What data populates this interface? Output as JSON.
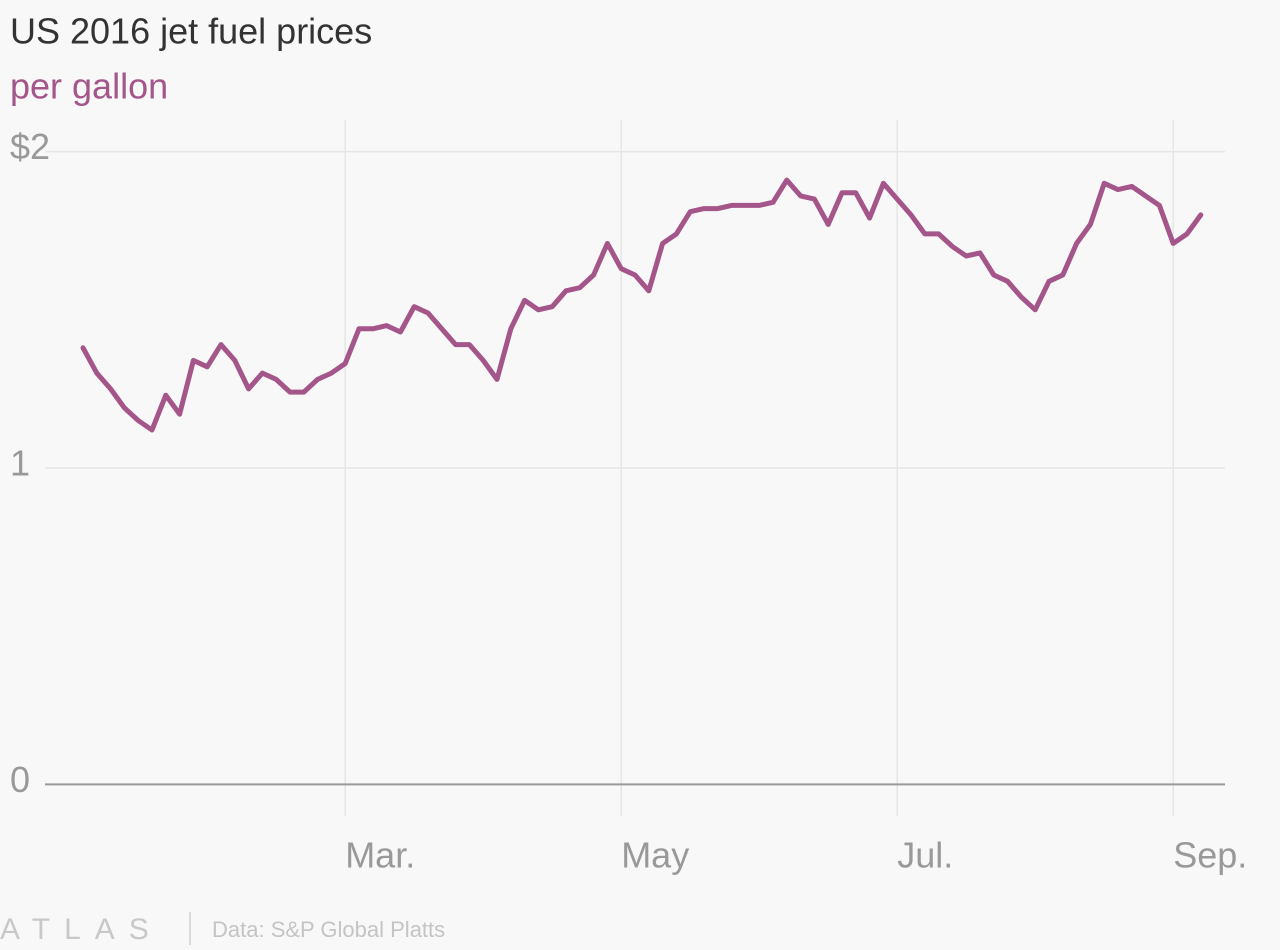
{
  "chart_data": {
    "type": "line",
    "title": "US 2016 jet fuel prices",
    "subtitle": "per gallon",
    "source": "Data: S&P Global Platts",
    "brand": "ATLAS",
    "color": "#a4558a",
    "grid": true,
    "categories": [
      null,
      null,
      null,
      null,
      null,
      null,
      null,
      null,
      null,
      null,
      null,
      null,
      null,
      null,
      null,
      null,
      null,
      null,
      null,
      "Mar.",
      null,
      null,
      null,
      null,
      null,
      null,
      null,
      null,
      null,
      null,
      null,
      null,
      null,
      null,
      null,
      null,
      null,
      null,
      null,
      "May",
      null,
      null,
      null,
      null,
      null,
      null,
      null,
      null,
      null,
      null,
      null,
      null,
      null,
      null,
      null,
      null,
      null,
      null,
      null,
      "Jul.",
      null,
      null,
      null,
      null,
      null,
      null,
      null,
      null,
      null,
      null,
      null,
      null,
      null,
      null,
      null,
      null,
      null,
      null,
      null,
      "Sep.",
      null,
      null
    ],
    "values": [
      1.38,
      1.3,
      1.25,
      1.19,
      1.15,
      1.12,
      1.23,
      1.17,
      1.34,
      1.32,
      1.39,
      1.34,
      1.25,
      1.3,
      1.28,
      1.24,
      1.24,
      1.28,
      1.3,
      1.33,
      1.44,
      1.44,
      1.45,
      1.43,
      1.51,
      1.49,
      1.44,
      1.39,
      1.39,
      1.34,
      1.28,
      1.44,
      1.53,
      1.5,
      1.51,
      1.56,
      1.57,
      1.61,
      1.71,
      1.63,
      1.61,
      1.56,
      1.71,
      1.74,
      1.81,
      1.82,
      1.82,
      1.83,
      1.83,
      1.83,
      1.84,
      1.91,
      1.86,
      1.85,
      1.77,
      1.87,
      1.87,
      1.79,
      1.9,
      1.85,
      1.8,
      1.74,
      1.74,
      1.7,
      1.67,
      1.68,
      1.61,
      1.59,
      1.54,
      1.5,
      1.59,
      1.61,
      1.71,
      1.77,
      1.9,
      1.88,
      1.89,
      1.86,
      1.83,
      1.71,
      1.74,
      1.8
    ],
    "ylim": [
      -0.1,
      2.1
    ],
    "yticks": [
      0,
      1,
      {
        "value": 2,
        "label": "$2"
      }
    ]
  }
}
